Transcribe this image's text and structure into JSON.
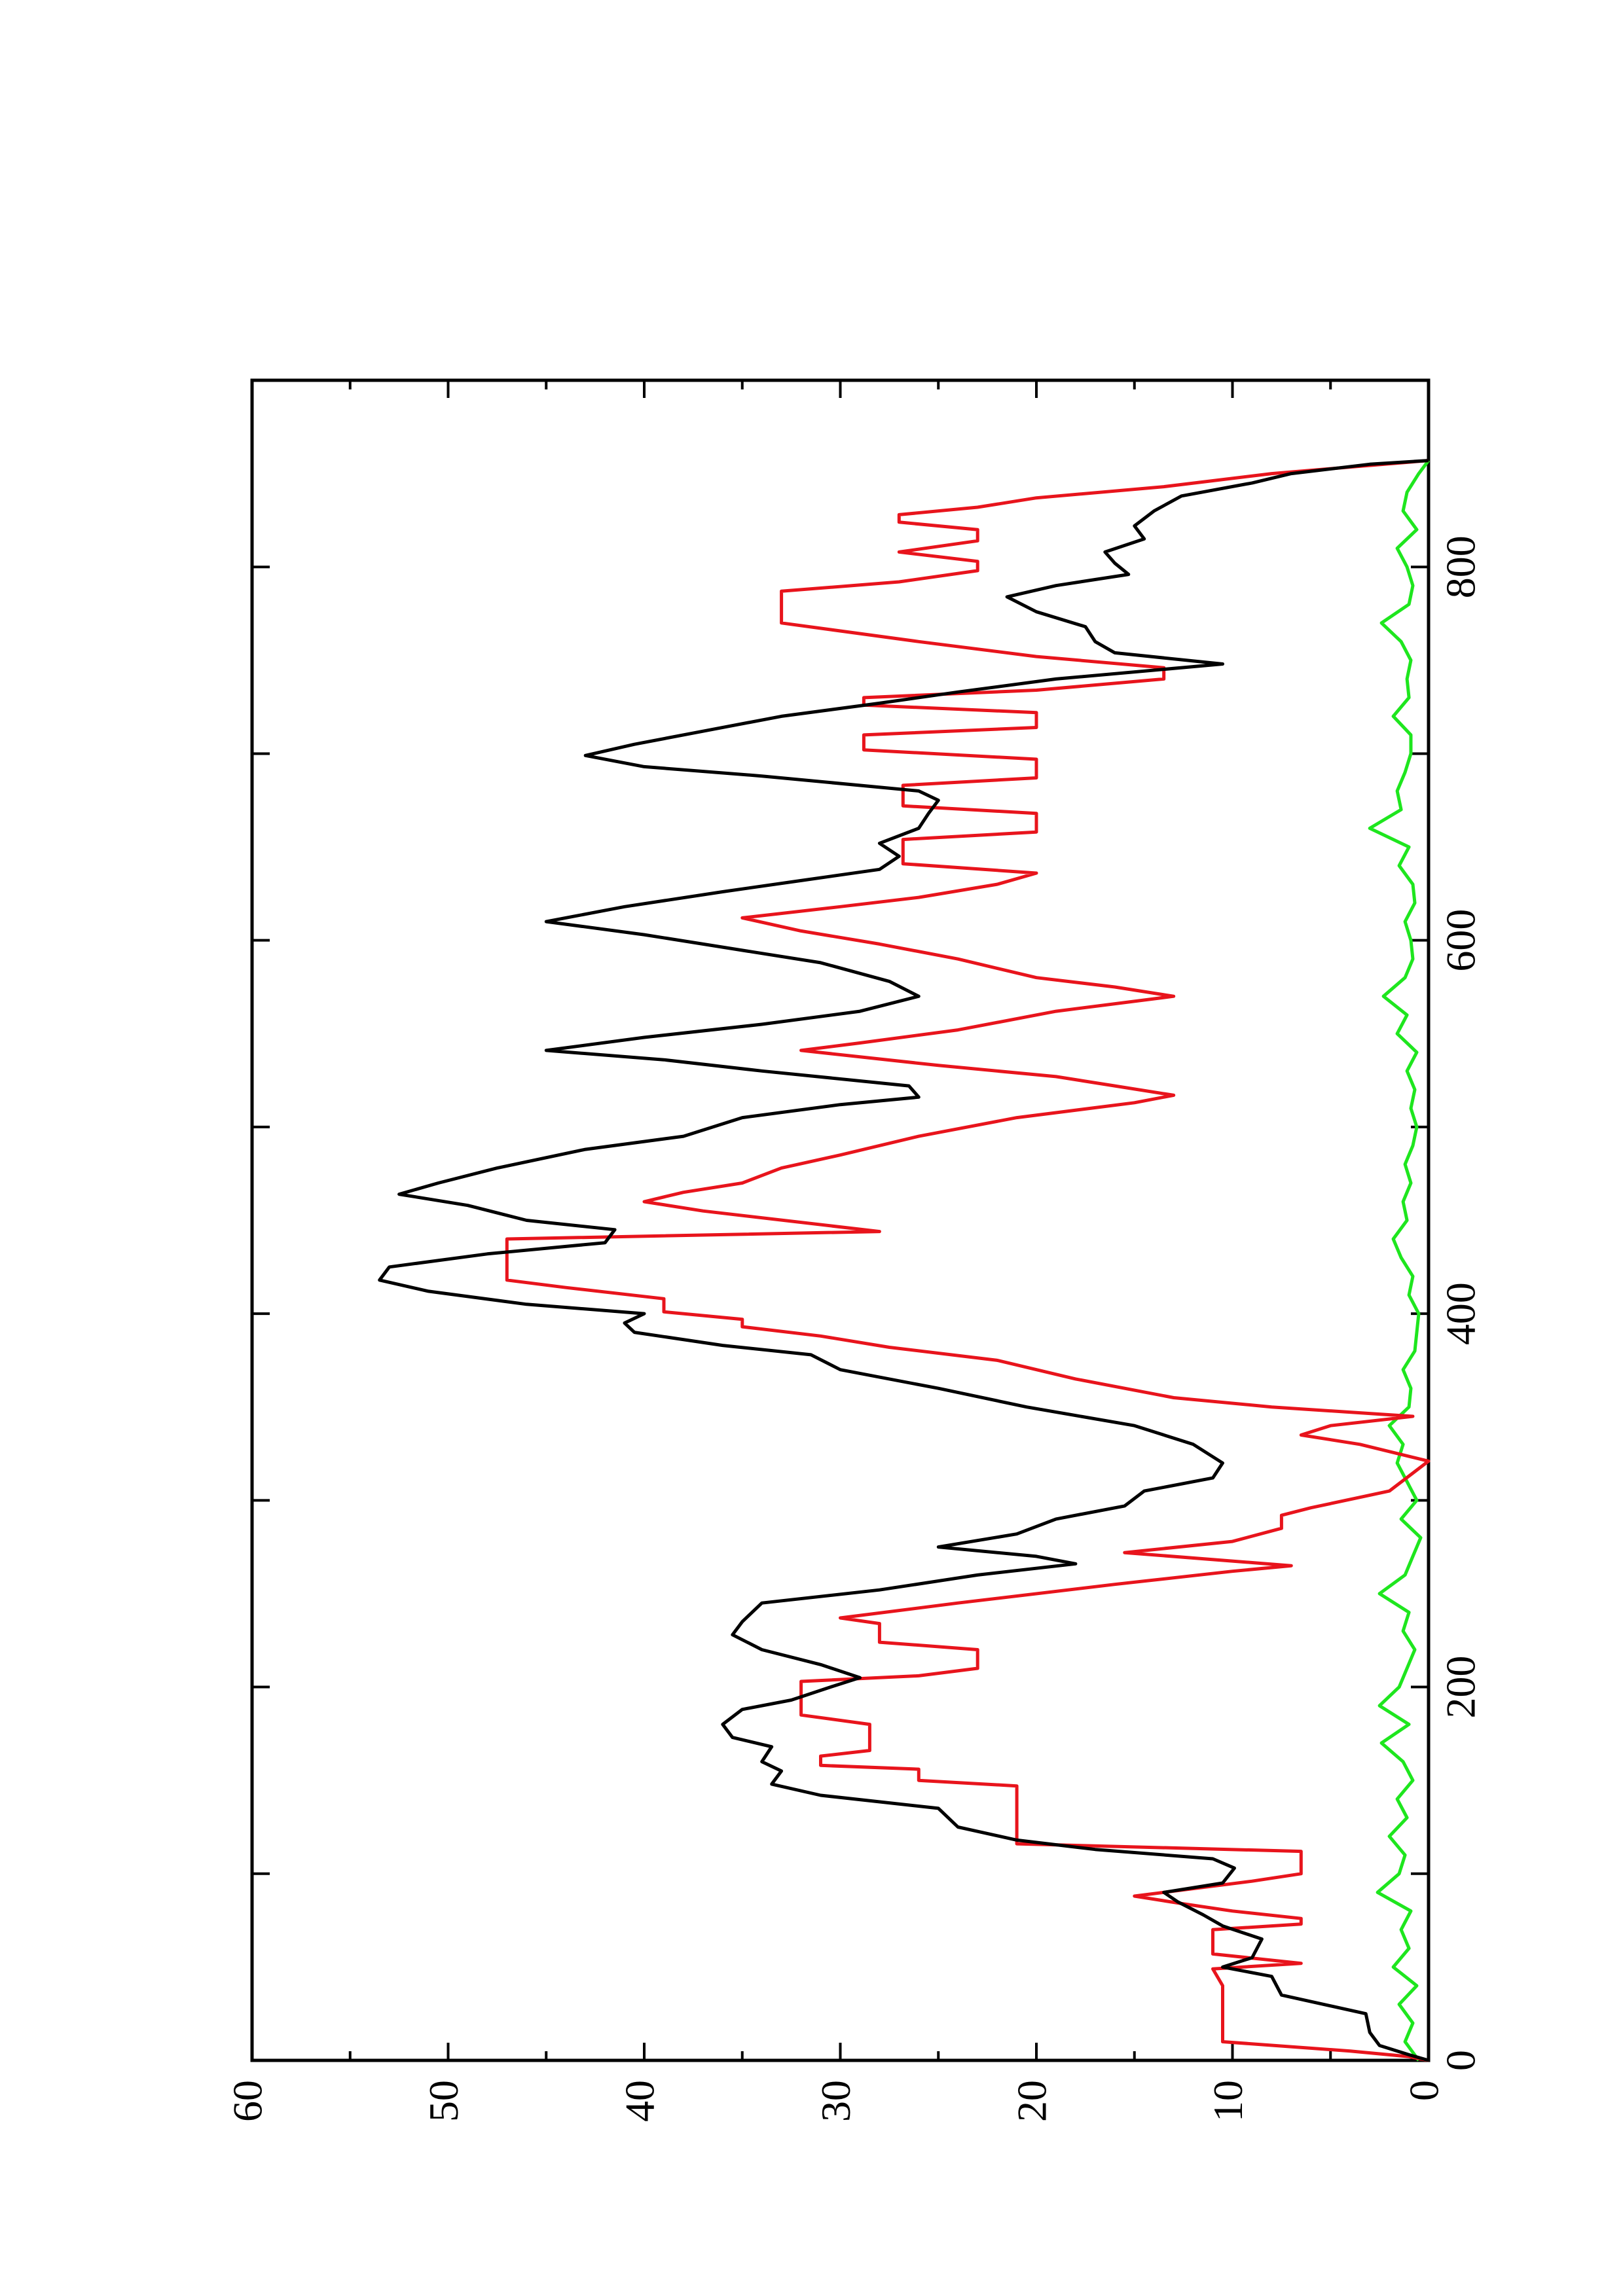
{
  "chart_data": {
    "type": "line",
    "xlim": [
      0,
      900
    ],
    "xticks": [
      0,
      200,
      400,
      600,
      800
    ],
    "xminorticks": [
      100,
      300,
      500,
      700
    ],
    "ylim": [
      0,
      60
    ],
    "yticks": [
      0,
      10,
      20,
      30,
      40,
      50,
      60
    ],
    "yminorticks": [
      5,
      15,
      25,
      35,
      45,
      55
    ],
    "series": [
      {
        "color": "#000000",
        "x": [
          0,
          3,
          8,
          15,
          25,
          35,
          45,
          50,
          55,
          65,
          72,
          78,
          85,
          90,
          95,
          103,
          108,
          113,
          118,
          125,
          135,
          142,
          148,
          155,
          160,
          168,
          173,
          180,
          188,
          193,
          200,
          205,
          212,
          220,
          228,
          235,
          245,
          252,
          260,
          266,
          270,
          275,
          282,
          290,
          297,
          305,
          312,
          320,
          330,
          340,
          350,
          360,
          370,
          378,
          383,
          390,
          395,
          400,
          405,
          412,
          418,
          425,
          432,
          438,
          445,
          450,
          458,
          464,
          470,
          478,
          488,
          495,
          505,
          512,
          516,
          522,
          530,
          536,
          541,
          548,
          555,
          562,
          570,
          578,
          588,
          598,
          603,
          610,
          618,
          626,
          632,
          638,
          645,
          652,
          660,
          668,
          675,
          680,
          688,
          693,
          699,
          705,
          712,
          720,
          727,
          733,
          740,
          748,
          754,
          760,
          768,
          776,
          784,
          790,
          796,
          802,
          808,
          815,
          822,
          830,
          838,
          845,
          850,
          855,
          857
        ],
        "values": [
          0,
          1,
          2.5,
          3,
          3.2,
          7.5,
          8,
          10.5,
          9,
          8.5,
          10.5,
          11.5,
          12.8,
          13.5,
          10.5,
          9.9,
          11,
          17,
          21,
          24,
          25,
          31,
          33.5,
          33,
          34,
          33.5,
          35.5,
          36,
          35,
          32.5,
          30.5,
          29,
          31,
          34,
          35.5,
          35,
          34,
          28,
          23,
          18,
          20,
          25,
          21,
          19,
          15.5,
          14.5,
          11,
          10.5,
          12,
          15,
          20.5,
          25,
          30,
          31.5,
          36,
          40.5,
          41,
          40,
          46,
          51,
          53.5,
          53,
          48,
          42,
          41.5,
          46,
          49,
          52.5,
          50.5,
          47.5,
          43,
          38,
          35,
          30,
          26,
          26.5,
          34,
          39,
          45,
          40,
          34,
          29,
          26,
          27.5,
          31,
          37,
          40,
          45,
          41,
          36,
          32,
          28,
          27,
          28,
          26,
          25.5,
          25,
          26,
          34,
          40,
          43,
          40.5,
          37,
          33,
          28,
          24,
          19,
          10.5,
          16,
          17,
          17.5,
          20,
          21.5,
          19,
          15.3,
          16,
          16.5,
          14.5,
          15,
          14,
          12.6,
          9,
          7,
          3,
          0
        ]
      },
      {
        "color": "#e8141c",
        "x": [
          0,
          2,
          5,
          10,
          21,
          40,
          49,
          52,
          57,
          70,
          73,
          76,
          80,
          84,
          88,
          96,
          100,
          112,
          116,
          147,
          150,
          156,
          158,
          163,
          166,
          180,
          185,
          203,
          206,
          210,
          220,
          224,
          234,
          237,
          245,
          255,
          262,
          265,
          272,
          278,
          285,
          292,
          296,
          305,
          321,
          330,
          335,
          340,
          345,
          350,
          355,
          365,
          375,
          382,
          388,
          393,
          397,
          401,
          408,
          414,
          418,
          440,
          444,
          455,
          460,
          465,
          470,
          478,
          485,
          495,
          505,
          513,
          517,
          522,
          527,
          533,
          541,
          545,
          552,
          562,
          570,
          575,
          580,
          590,
          598,
          605,
          612,
          618,
          623,
          630,
          636,
          641,
          654,
          658,
          668,
          672,
          683,
          687,
          697,
          702,
          710,
          714,
          722,
          726,
          730,
          734,
          740,
          746,
          752,
          760,
          770,
          787,
          792,
          798,
          803,
          808,
          814,
          820,
          824,
          828,
          832,
          837,
          843,
          850,
          857
        ],
        "values": [
          0,
          1,
          4,
          10.5,
          10.5,
          10.5,
          11,
          6.5,
          11,
          11,
          6.5,
          6.5,
          10,
          12.6,
          15,
          9,
          6.5,
          6.5,
          21,
          21,
          26,
          26,
          31,
          31,
          28.5,
          28.5,
          32,
          32,
          26,
          23,
          23,
          28,
          28,
          30,
          24,
          16,
          10,
          7,
          15.5,
          10,
          7.5,
          7.5,
          6,
          2,
          0,
          3.5,
          6.5,
          5,
          0.8,
          8,
          13,
          18,
          22,
          27.5,
          31,
          35,
          35,
          39,
          39,
          44,
          47,
          47,
          28,
          37,
          40,
          38,
          35,
          33,
          30,
          26,
          21,
          15,
          13,
          16,
          19,
          25,
          32,
          29,
          24,
          19,
          13,
          16,
          20,
          24,
          28,
          32,
          35,
          30,
          26,
          22,
          20,
          26.8,
          26.8,
          20,
          20,
          26.8,
          26.8,
          20,
          20,
          28.8,
          28.8,
          20,
          20,
          28.8,
          28.8,
          20,
          13.5,
          13.5,
          20,
          26,
          33,
          33,
          27,
          23,
          23,
          27,
          23,
          23,
          27,
          27,
          23,
          20,
          13.5,
          8,
          0
        ]
      },
      {
        "color": "#1ee61e",
        "x": [
          0,
          10,
          20,
          30,
          40,
          50,
          60,
          70,
          80,
          90,
          100,
          110,
          120,
          130,
          140,
          150,
          160,
          170,
          180,
          190,
          200,
          210,
          220,
          230,
          240,
          250,
          260,
          270,
          280,
          290,
          300,
          310,
          320,
          330,
          340,
          350,
          360,
          370,
          380,
          390,
          400,
          410,
          420,
          430,
          440,
          450,
          460,
          470,
          480,
          490,
          500,
          510,
          520,
          530,
          540,
          550,
          560,
          570,
          580,
          590,
          600,
          610,
          620,
          630,
          640,
          650,
          660,
          670,
          680,
          690,
          700,
          710,
          720,
          730,
          740,
          750,
          760,
          770,
          780,
          790,
          800,
          810,
          820,
          830,
          840,
          850,
          857
        ],
        "values": [
          0.5,
          1.2,
          0.8,
          1.5,
          0.6,
          1.8,
          1,
          1.4,
          0.9,
          2.6,
          1.5,
          1.2,
          2,
          1.1,
          1.6,
          0.8,
          1.3,
          2.4,
          1,
          2.5,
          1.5,
          1.1,
          0.7,
          1.3,
          1,
          2.5,
          1.2,
          0.8,
          0.4,
          1.4,
          0.6,
          1.1,
          1.6,
          1.3,
          2,
          1,
          0.9,
          1.3,
          0.7,
          0.6,
          0.5,
          1,
          0.8,
          1.4,
          1.8,
          1.1,
          1.3,
          0.9,
          1.2,
          0.8,
          0.6,
          0.9,
          0.7,
          1.1,
          0.6,
          1.6,
          1.1,
          2.3,
          1.2,
          0.8,
          0.9,
          1.2,
          0.7,
          0.8,
          1.5,
          1,
          3,
          1.4,
          1.6,
          1.2,
          0.9,
          0.9,
          1.8,
          1,
          1.1,
          0.9,
          1.4,
          2.4,
          1,
          0.8,
          1.1,
          1.6,
          0.6,
          1.3,
          1.1,
          0.5,
          0
        ]
      }
    ]
  }
}
